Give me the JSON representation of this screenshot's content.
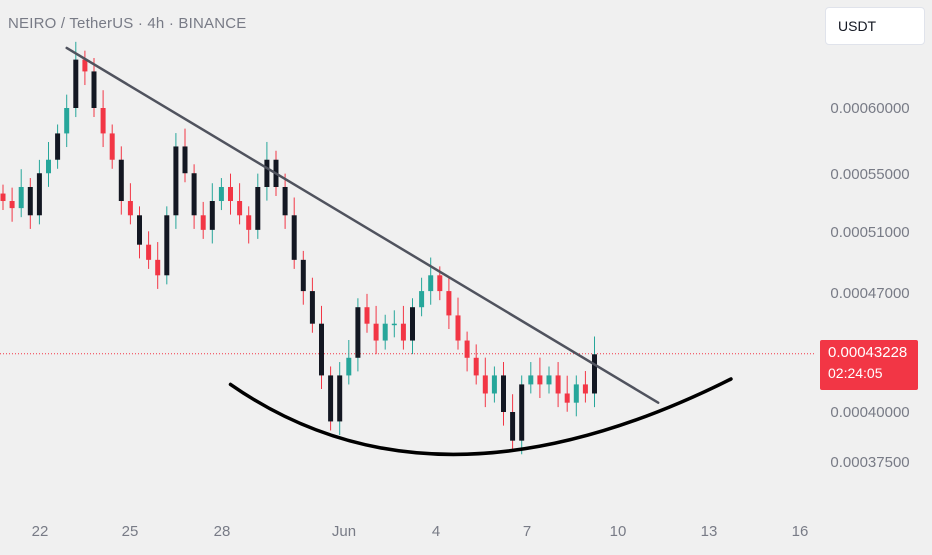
{
  "header": {
    "symbol_line": "NEIRO / TetherUS · 4h · BINANCE",
    "currency_button": "USDT"
  },
  "price_marker": {
    "price": "0.00043228",
    "countdown": "02:24:05"
  },
  "colors": {
    "background": "#f0f0f0",
    "up": "#26a69a",
    "down": "#f23645",
    "neutral_candle": "#131722",
    "trendline": "#50535e",
    "price_line": "#f23645",
    "axis_text": "#787b86"
  },
  "chart_data": {
    "type": "candlestick",
    "xlabel": "",
    "ylabel": "",
    "x_ticks": [
      "22",
      "25",
      "28",
      "Jun",
      "4",
      "7",
      "10",
      "13",
      "16"
    ],
    "y_ticks": [
      "0.00060000",
      "0.00055000",
      "0.00051000",
      "0.00047000",
      "0.00040000",
      "0.00037500"
    ],
    "y_range": [
      0.00036,
      0.00069
    ],
    "log_scale": true,
    "grid": false,
    "last_price": 0.00043228,
    "candles_close_path": [
      [
        0,
        0.00053
      ],
      [
        1,
        0.000525
      ],
      [
        2,
        0.00054
      ],
      [
        3,
        0.00052
      ],
      [
        4,
        0.00055
      ],
      [
        5,
        0.00056
      ],
      [
        6,
        0.00058
      ],
      [
        7,
        0.0006
      ],
      [
        8,
        0.00064
      ],
      [
        9,
        0.00063
      ],
      [
        10,
        0.0006
      ],
      [
        11,
        0.00058
      ],
      [
        12,
        0.00056
      ],
      [
        13,
        0.00053
      ],
      [
        14,
        0.00052
      ],
      [
        15,
        0.0005
      ],
      [
        16,
        0.00049
      ],
      [
        17,
        0.00048
      ],
      [
        18,
        0.00052
      ],
      [
        19,
        0.00057
      ],
      [
        20,
        0.00055
      ],
      [
        21,
        0.00052
      ],
      [
        22,
        0.00051
      ],
      [
        23,
        0.00053
      ],
      [
        24,
        0.00054
      ],
      [
        25,
        0.00053
      ],
      [
        26,
        0.00052
      ],
      [
        27,
        0.00051
      ],
      [
        28,
        0.00054
      ],
      [
        29,
        0.00056
      ],
      [
        30,
        0.00054
      ],
      [
        31,
        0.00052
      ],
      [
        32,
        0.00049
      ],
      [
        33,
        0.00047
      ],
      [
        34,
        0.00045
      ],
      [
        35,
        0.00042
      ],
      [
        36,
        0.000395
      ],
      [
        37,
        0.00042
      ],
      [
        38,
        0.00043
      ],
      [
        39,
        0.00046
      ],
      [
        40,
        0.00045
      ],
      [
        41,
        0.00044
      ],
      [
        42,
        0.00045
      ],
      [
        43,
        0.00045
      ],
      [
        44,
        0.00044
      ],
      [
        45,
        0.00046
      ],
      [
        46,
        0.00047
      ],
      [
        47,
        0.00048
      ],
      [
        48,
        0.00047
      ],
      [
        49,
        0.000455
      ],
      [
        50,
        0.00044
      ],
      [
        51,
        0.00043
      ],
      [
        52,
        0.00042
      ],
      [
        53,
        0.00041
      ],
      [
        54,
        0.00042
      ],
      [
        55,
        0.0004
      ],
      [
        56,
        0.000385
      ],
      [
        57,
        0.000415
      ],
      [
        58,
        0.00042
      ],
      [
        59,
        0.000415
      ],
      [
        60,
        0.00042
      ],
      [
        61,
        0.00041
      ],
      [
        62,
        0.000405
      ],
      [
        63,
        0.000415
      ],
      [
        64,
        0.00041
      ],
      [
        65,
        0.000432
      ]
    ],
    "annotations": [
      {
        "type": "trendline",
        "from": [
          7,
          0.00065
        ],
        "to": [
          72,
          0.000405
        ]
      },
      {
        "type": "rounding-bottom-curve",
        "from": [
          25,
          0.000415
        ],
        "to": [
          80,
          0.000418
        ],
        "lowest": [
          50,
          0.000378
        ]
      }
    ]
  }
}
